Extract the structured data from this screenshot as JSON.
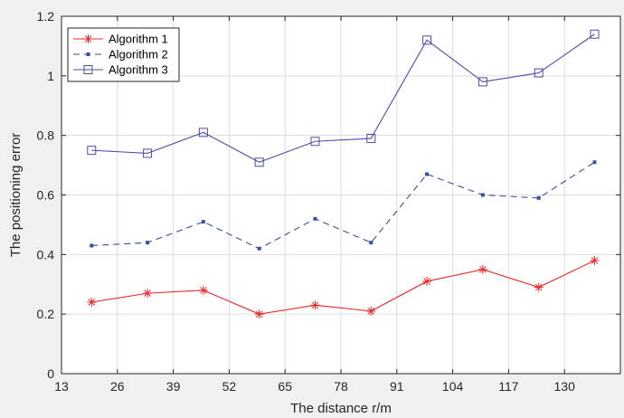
{
  "chart_data": {
    "type": "line",
    "title": "",
    "xlabel": "The distance r/m",
    "ylabel": "The positioning error",
    "xlim": [
      13,
      143
    ],
    "ylim": [
      0,
      1.2
    ],
    "x_ticks": [
      13,
      26,
      39,
      52,
      65,
      78,
      91,
      104,
      117,
      130
    ],
    "y_ticks": [
      0,
      0.2,
      0.4,
      0.6,
      0.8,
      1,
      1.2
    ],
    "x_tick_labels": [
      "13",
      "26",
      "39",
      "52",
      "65",
      "78",
      "91",
      "104",
      "117",
      "130"
    ],
    "y_tick_labels": [
      "0",
      "0.2",
      "0.4",
      "0.6",
      "0.8",
      "1",
      "1.2"
    ],
    "grid": true,
    "legend_position": "top-left",
    "x": [
      20,
      33,
      46,
      59,
      72,
      85,
      98,
      111,
      124,
      137
    ],
    "series": [
      {
        "name": "Algorithm 1",
        "values": [
          0.24,
          0.27,
          0.28,
          0.2,
          0.23,
          0.21,
          0.31,
          0.35,
          0.29,
          0.38
        ],
        "color": "#e8282b",
        "line_style": "solid",
        "marker": "asterisk"
      },
      {
        "name": "Algorithm 2",
        "values": [
          0.43,
          0.44,
          0.51,
          0.42,
          0.52,
          0.44,
          0.67,
          0.6,
          0.59,
          0.71
        ],
        "color": "#3c4ea0",
        "line_style": "dashed",
        "marker": "dot"
      },
      {
        "name": "Algorithm 3",
        "values": [
          0.75,
          0.74,
          0.81,
          0.71,
          0.78,
          0.79,
          1.12,
          0.98,
          1.01,
          1.14
        ],
        "color": "#4a4ea8",
        "line_style": "solid",
        "marker": "square"
      }
    ]
  }
}
